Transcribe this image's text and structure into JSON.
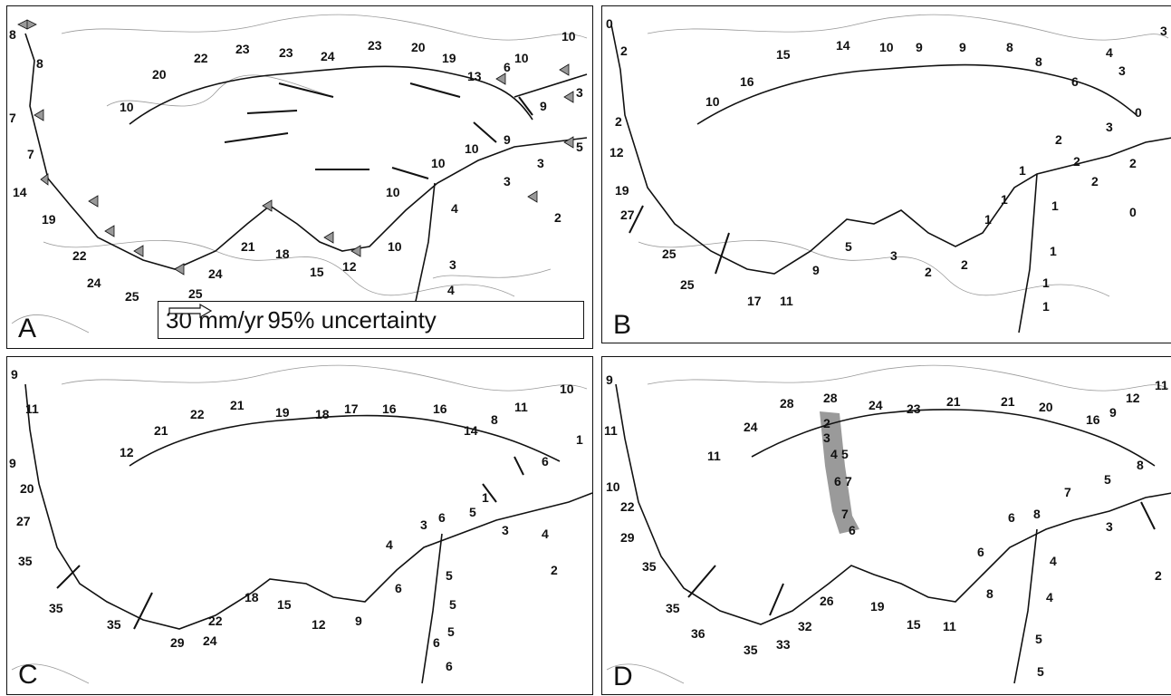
{
  "colors": {
    "ink": "#111111",
    "triangle": "#999999",
    "shade": "#9a9a9a"
  },
  "panels": [
    {
      "id": "a",
      "letter": "A",
      "labels": [
        "8",
        "8",
        "7",
        "7",
        "14",
        "19",
        "22",
        "24",
        "25",
        "25",
        "24",
        "21",
        "18",
        "15",
        "12",
        "10",
        "10",
        "10",
        "10",
        "9",
        "9",
        "3",
        "3",
        "4",
        "3",
        "4",
        "2",
        "5",
        "3",
        "6",
        "13",
        "10",
        "10",
        "19",
        "20",
        "23",
        "24",
        "23",
        "23",
        "22",
        "20",
        "10"
      ],
      "legend": {
        "rate": "30 mm/yr",
        "uncertainty": "95% uncertainty"
      }
    },
    {
      "id": "b",
      "letter": "B",
      "labels": [
        "0",
        "2",
        "2",
        "12",
        "19",
        "27",
        "25",
        "25",
        "17",
        "11",
        "9",
        "5",
        "3",
        "2",
        "2",
        "1",
        "1",
        "1",
        "1",
        "1",
        "1",
        "1",
        "2",
        "2",
        "2",
        "2",
        "0",
        "3",
        "0",
        "3",
        "4",
        "3",
        "6",
        "8",
        "8",
        "9",
        "9",
        "10",
        "14",
        "15",
        "16",
        "10"
      ]
    },
    {
      "id": "c",
      "letter": "C",
      "labels": [
        "9",
        "11",
        "9",
        "20",
        "27",
        "35",
        "35",
        "35",
        "29",
        "24",
        "22",
        "18",
        "15",
        "12",
        "9",
        "6",
        "4",
        "3",
        "6",
        "5",
        "5",
        "5",
        "6",
        "6",
        "3",
        "1",
        "4",
        "5",
        "2",
        "6",
        "8",
        "14",
        "11",
        "10",
        "1",
        "16",
        "16",
        "17",
        "18",
        "19",
        "21",
        "22",
        "21",
        "12"
      ]
    },
    {
      "id": "d",
      "letter": "D",
      "labels": [
        "9",
        "11",
        "10",
        "22",
        "29",
        "35",
        "35",
        "36",
        "35",
        "33",
        "32",
        "26",
        "19",
        "15",
        "11",
        "8",
        "6",
        "6",
        "8",
        "4",
        "4",
        "5",
        "5",
        "3",
        "7",
        "5",
        "8",
        "2",
        "16",
        "9",
        "12",
        "11",
        "20",
        "21",
        "21",
        "23",
        "24",
        "28",
        "28",
        "24",
        "11",
        "2",
        "3",
        "4",
        "5",
        "6",
        "7",
        "7",
        "6"
      ]
    }
  ]
}
